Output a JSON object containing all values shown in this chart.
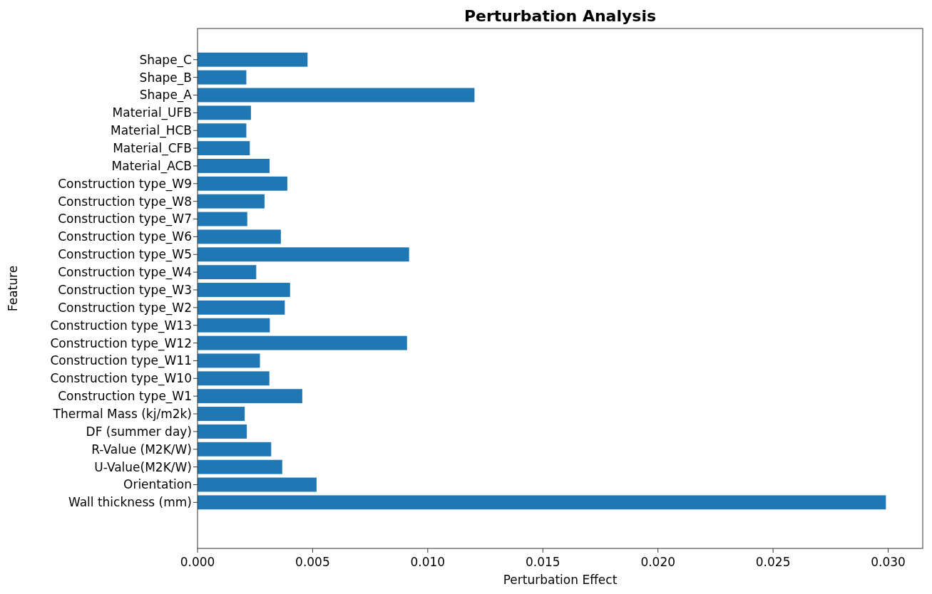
{
  "chart_data": {
    "type": "bar",
    "orientation": "horizontal",
    "title": "Perturbation Analysis",
    "xlabel": "Perturbation Effect",
    "ylabel": "Feature",
    "categories": [
      "Shape_C",
      "Shape_B",
      "Shape_A",
      "Material_UFB",
      "Material_HCB",
      "Material_CFB",
      "Material_ACB",
      "Construction type_W9",
      "Construction type_W8",
      "Construction type_W7",
      "Construction type_W6",
      "Construction type_W5",
      "Construction type_W4",
      "Construction type_W3",
      "Construction type_W2",
      "Construction type_W13",
      "Construction type_W12",
      "Construction type_W11",
      "Construction type_W10",
      "Construction type_W1",
      "Thermal Mass (kj/m2k)",
      "DF (summer day)",
      "R-Value (M2K/W)",
      "U-Value(M2K/W)",
      "Orientation",
      "Wall thickness (mm)"
    ],
    "values": [
      0.00478,
      0.00212,
      0.01203,
      0.00232,
      0.00212,
      0.00227,
      0.00313,
      0.0039,
      0.00291,
      0.00216,
      0.00362,
      0.00919,
      0.00255,
      0.00402,
      0.00379,
      0.00314,
      0.0091,
      0.00271,
      0.00312,
      0.00455,
      0.00205,
      0.00214,
      0.0032,
      0.00368,
      0.00517,
      0.0299
    ],
    "color": "#1f77b4",
    "xlim": [
      0,
      0.0315
    ],
    "xticks": [
      {
        "value": 0,
        "label": "0.000"
      },
      {
        "value": 0.005,
        "label": "0.005"
      },
      {
        "value": 0.01,
        "label": "0.010"
      },
      {
        "value": 0.015,
        "label": "0.015"
      },
      {
        "value": 0.02,
        "label": "0.020"
      },
      {
        "value": 0.025,
        "label": "0.025"
      },
      {
        "value": 0.03,
        "label": "0.030"
      }
    ],
    "grid": false
  }
}
